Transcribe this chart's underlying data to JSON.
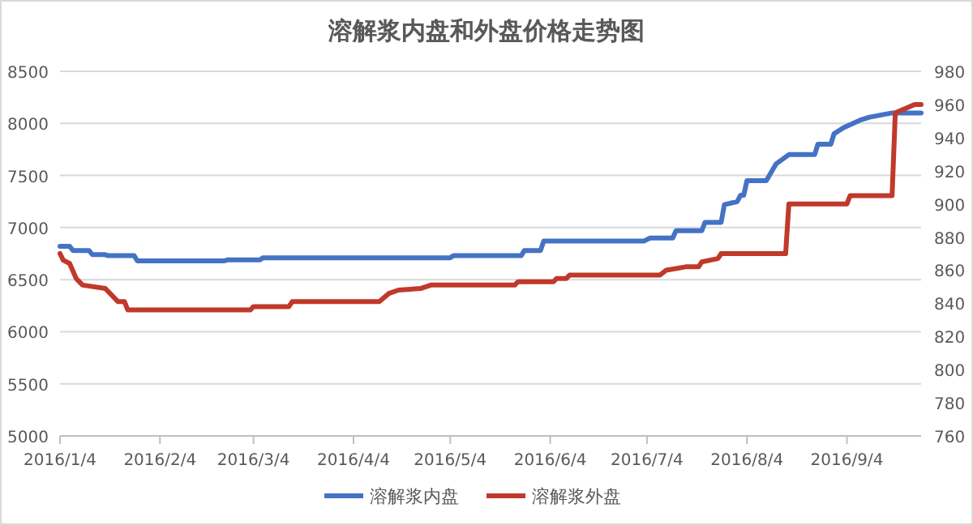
{
  "chart_data": {
    "type": "line",
    "title": "溶解浆内盘和外盘价格走势图",
    "legend": "bottom",
    "grid": "y",
    "marker": "none",
    "line_style": "solid",
    "xlim": [
      "2016-01-04",
      "2016-09-27"
    ],
    "xticks": [
      {
        "value": "2016-01-04",
        "label": "2016/1/4"
      },
      {
        "value": "2016-02-04",
        "label": "2016/2/4"
      },
      {
        "value": "2016-03-04",
        "label": "2016/3/4"
      },
      {
        "value": "2016-04-04",
        "label": "2016/4/4"
      },
      {
        "value": "2016-05-04",
        "label": "2016/5/4"
      },
      {
        "value": "2016-06-04",
        "label": "2016/6/4"
      },
      {
        "value": "2016-07-04",
        "label": "2016/7/4"
      },
      {
        "value": "2016-08-04",
        "label": "2016/8/4"
      },
      {
        "value": "2016-09-04",
        "label": "2016/9/4"
      }
    ],
    "ylim": [
      5000,
      8500
    ],
    "yticks": [
      5000,
      5500,
      6000,
      6500,
      7000,
      7500,
      8000,
      8500
    ],
    "y2lim": [
      760,
      980
    ],
    "y2ticks": [
      760,
      780,
      800,
      820,
      840,
      860,
      880,
      900,
      920,
      940,
      960,
      980
    ],
    "series": [
      {
        "name": "溶解浆内盘",
        "color": "#4472c4",
        "x": [
          "2016-01-04",
          "2016-01-07",
          "2016-01-08",
          "2016-01-13",
          "2016-01-14",
          "2016-01-18",
          "2016-01-19",
          "2016-01-27",
          "2016-01-28",
          "2016-02-24",
          "2016-02-25",
          "2016-03-06",
          "2016-03-07",
          "2016-05-04",
          "2016-05-05",
          "2016-05-26",
          "2016-05-27",
          "2016-06-01",
          "2016-06-02",
          "2016-07-03",
          "2016-07-05",
          "2016-07-12",
          "2016-07-13",
          "2016-07-21",
          "2016-07-22",
          "2016-07-27",
          "2016-07-28",
          "2016-08-01",
          "2016-08-02",
          "2016-08-03",
          "2016-08-04",
          "2016-08-10",
          "2016-08-13",
          "2016-08-17",
          "2016-08-25",
          "2016-08-26",
          "2016-08-30",
          "2016-08-31",
          "2016-09-03",
          "2016-09-08",
          "2016-09-11",
          "2016-09-18",
          "2016-09-27"
        ],
        "values": [
          6820,
          6820,
          6780,
          6780,
          6740,
          6740,
          6730,
          6730,
          6680,
          6680,
          6690,
          6690,
          6710,
          6710,
          6730,
          6730,
          6780,
          6780,
          6870,
          6870,
          6900,
          6900,
          6970,
          6970,
          7050,
          7050,
          7220,
          7250,
          7310,
          7310,
          7450,
          7450,
          7610,
          7700,
          7700,
          7800,
          7800,
          7900,
          7960,
          8030,
          8060,
          8100,
          8100
        ]
      },
      {
        "name": "溶解浆外盘",
        "color": "#c0392b",
        "axis": "y2",
        "x": [
          "2016-01-04",
          "2016-01-05",
          "2016-01-07",
          "2016-01-09",
          "2016-01-11",
          "2016-01-18",
          "2016-01-20",
          "2016-01-22",
          "2016-01-24",
          "2016-01-25",
          "2016-03-03",
          "2016-03-04",
          "2016-03-15",
          "2016-03-16",
          "2016-04-12",
          "2016-04-15",
          "2016-04-18",
          "2016-04-25",
          "2016-04-28",
          "2016-05-24",
          "2016-05-25",
          "2016-06-05",
          "2016-06-06",
          "2016-06-09",
          "2016-06-10",
          "2016-07-08",
          "2016-07-10",
          "2016-07-16",
          "2016-07-20",
          "2016-07-21",
          "2016-07-26",
          "2016-07-27",
          "2016-08-16",
          "2016-08-17",
          "2016-09-04",
          "2016-09-05",
          "2016-09-18",
          "2016-09-19",
          "2016-09-25",
          "2016-09-27"
        ],
        "values": [
          870,
          866,
          864,
          855,
          851,
          849,
          845,
          841,
          841,
          836,
          836,
          838,
          838,
          841,
          841,
          846,
          848,
          849,
          851,
          851,
          853,
          853,
          855,
          855,
          857,
          857,
          860,
          862,
          862,
          865,
          867,
          870,
          870,
          900,
          900,
          905,
          905,
          955,
          960,
          960
        ]
      }
    ]
  }
}
